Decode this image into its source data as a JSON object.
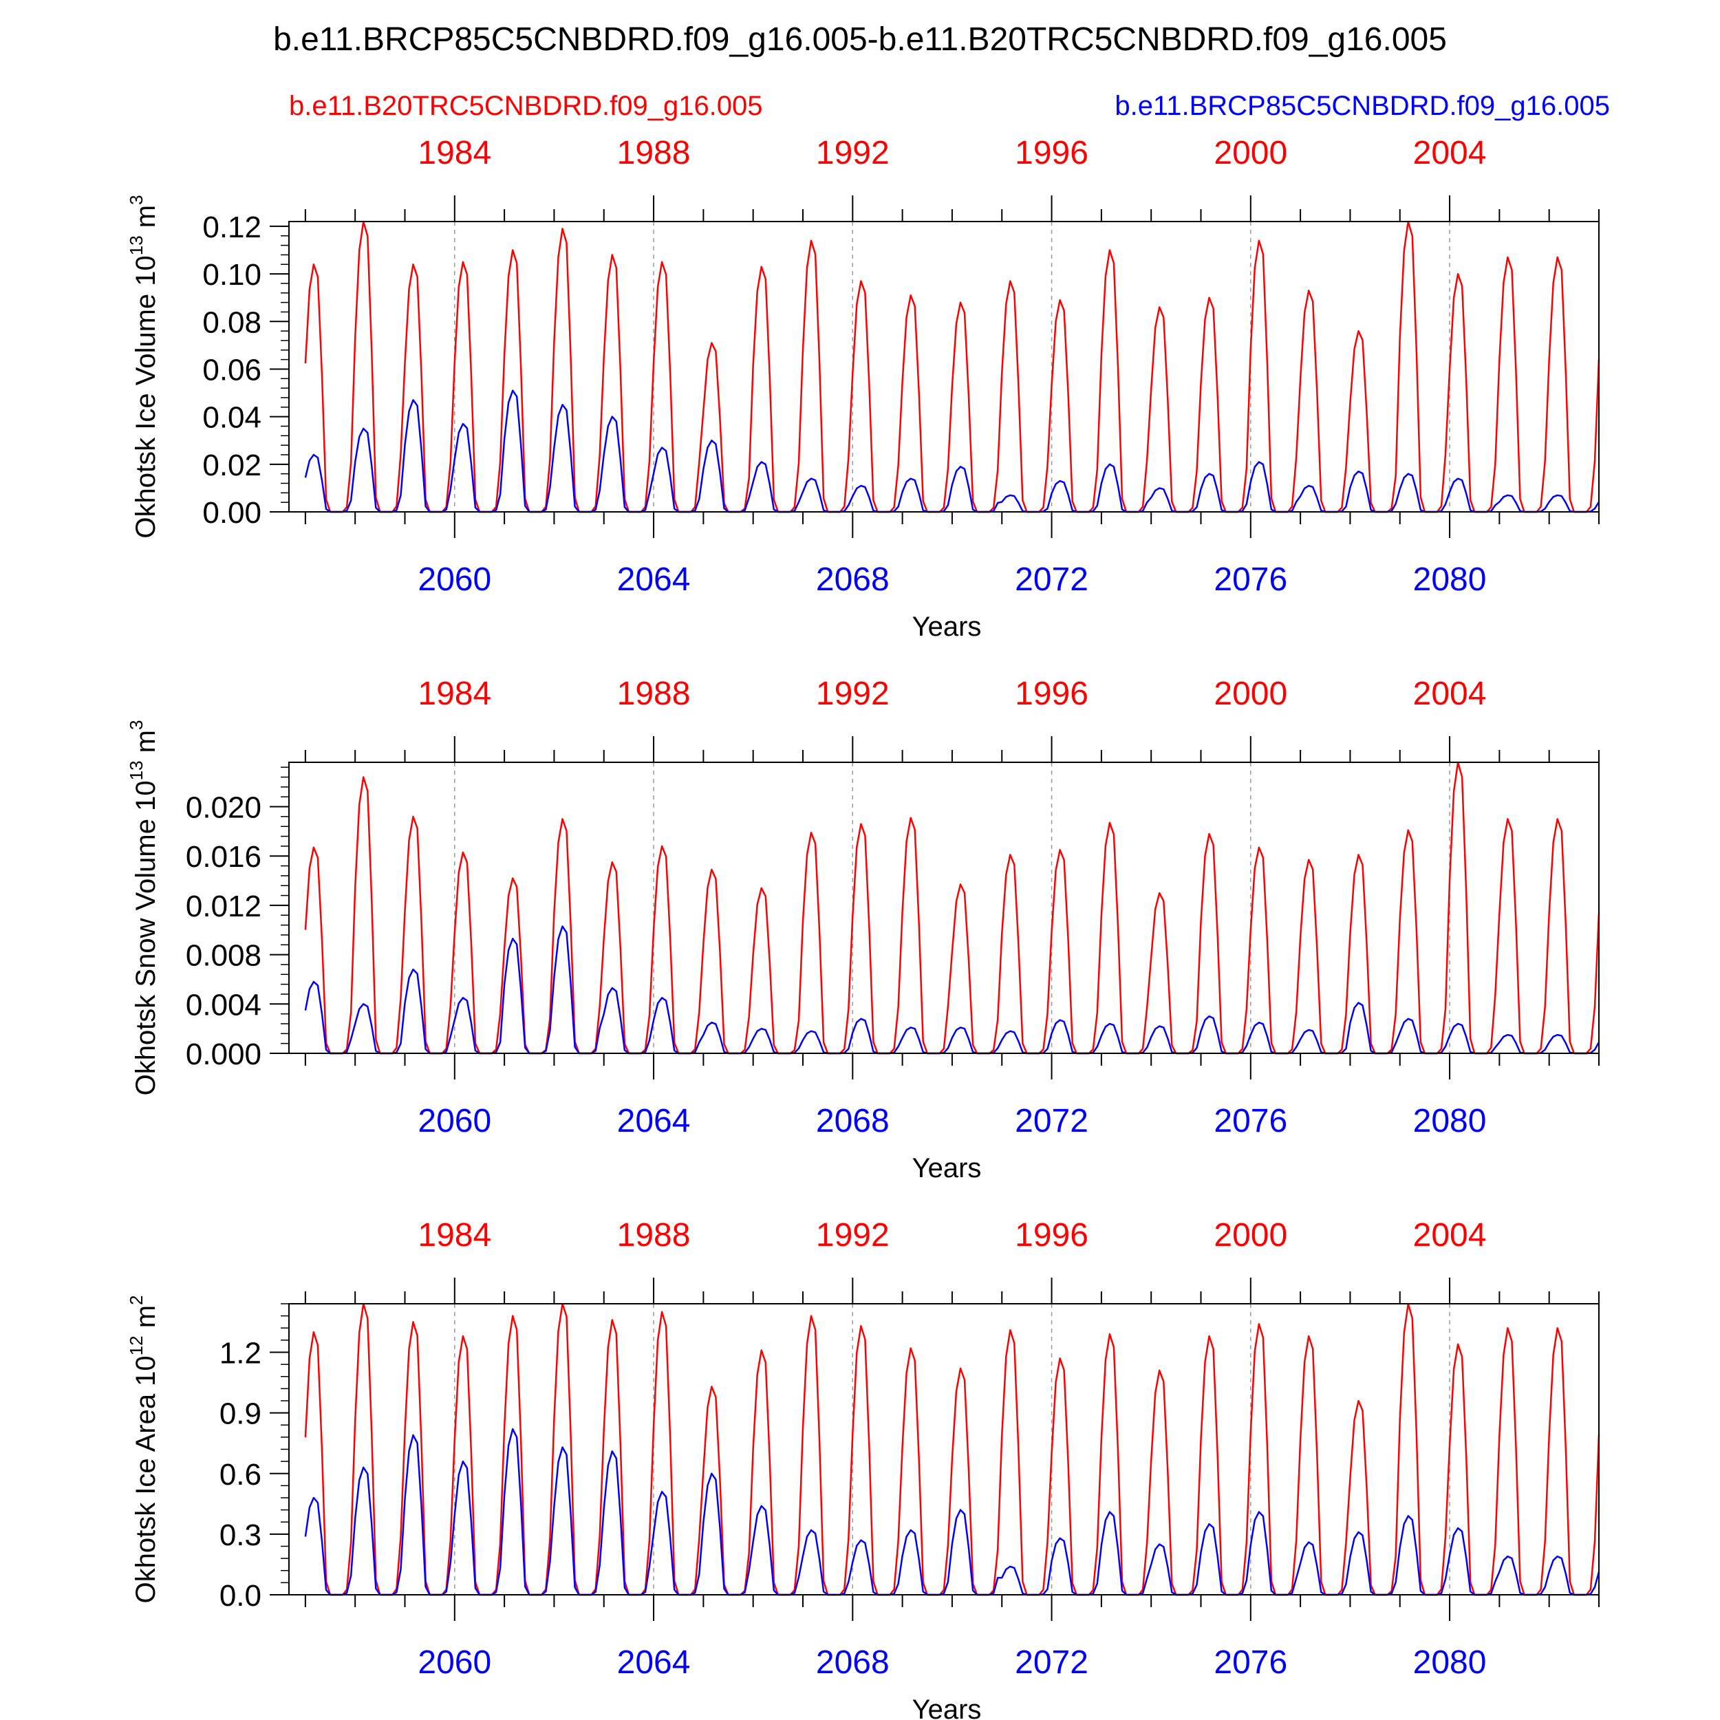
{
  "title": "b.e11.BRCP85C5CNBDRD.f09_g16.005-b.e11.B20TRC5CNBDRD.f09_g16.005",
  "legend": {
    "red_label": "b.e11.B20TRC5CNBDRD.f09_g16.005",
    "blue_label": "b.e11.BRCP85C5CNBDRD.f09_g16.005"
  },
  "colors": {
    "historical": "#ff0000",
    "future": "#0000ff",
    "axis": "#000000",
    "grid": "#999999"
  },
  "chart_data": [
    {
      "type": "line",
      "panel": "ice-volume",
      "ylabel": "Okhotsk Ice Volume 10",
      "ylabel_exp": "13",
      "ylabel_unit": " m",
      "ylabel_unit_exp": "3",
      "xlabel": "Years",
      "ylim": [
        0,
        0.122
      ],
      "yticks": [
        0.0,
        0.02,
        0.04,
        0.06,
        0.08,
        0.1,
        0.12
      ],
      "ytick_labels": [
        "0.00",
        "0.02",
        "0.04",
        "0.06",
        "0.08",
        "0.10",
        "0.12"
      ],
      "top_axis": {
        "xlim": [
          1980.67,
          2007.0
        ],
        "ticks": [
          1984,
          1988,
          1992,
          1996,
          2000,
          2004
        ]
      },
      "bottom_axis": {
        "xlim": [
          2056.67,
          2083.0
        ],
        "ticks": [
          2060,
          2064,
          2068,
          2072,
          2076,
          2080
        ]
      },
      "series": [
        {
          "color": "#ff0000",
          "axis": "top",
          "peaks": [
            0.104,
            0.122,
            0.104,
            0.105,
            0.11,
            0.119,
            0.108,
            0.105,
            0.071,
            0.103,
            0.114,
            0.097,
            0.091,
            0.088,
            0.097,
            0.089,
            0.11,
            0.086,
            0.09,
            0.114,
            0.093,
            0.076,
            0.122,
            0.1,
            0.107
          ]
        },
        {
          "color": "#0000ff",
          "axis": "bottom",
          "peaks": [
            0.024,
            0.035,
            0.047,
            0.037,
            0.051,
            0.045,
            0.04,
            0.027,
            0.03,
            0.021,
            0.014,
            0.011,
            0.014,
            0.019,
            0.007,
            0.013,
            0.02,
            0.01,
            0.016,
            0.021,
            0.011,
            0.017,
            0.016,
            0.014,
            0.007
          ]
        }
      ]
    },
    {
      "type": "line",
      "panel": "snow-volume",
      "ylabel": "Okhotsk Snow Volume 10",
      "ylabel_exp": "13",
      "ylabel_unit": " m",
      "ylabel_unit_exp": "3",
      "xlabel": "Years",
      "ylim": [
        0,
        0.0236
      ],
      "yticks": [
        0.0,
        0.004,
        0.008,
        0.012,
        0.016,
        0.02
      ],
      "ytick_labels": [
        "0.000",
        "0.004",
        "0.008",
        "0.012",
        "0.016",
        "0.020"
      ],
      "top_axis": {
        "xlim": [
          1980.67,
          2007.0
        ],
        "ticks": [
          1984,
          1988,
          1992,
          1996,
          2000,
          2004
        ]
      },
      "bottom_axis": {
        "xlim": [
          2056.67,
          2083.0
        ],
        "ticks": [
          2060,
          2064,
          2068,
          2072,
          2076,
          2080
        ]
      },
      "series": [
        {
          "color": "#ff0000",
          "axis": "top",
          "peaks": [
            0.0167,
            0.0224,
            0.0192,
            0.0163,
            0.0142,
            0.019,
            0.0155,
            0.0168,
            0.0149,
            0.0134,
            0.0179,
            0.0186,
            0.0191,
            0.0137,
            0.0161,
            0.0165,
            0.0187,
            0.013,
            0.0178,
            0.0167,
            0.0157,
            0.0161,
            0.0181,
            0.0236,
            0.019
          ]
        },
        {
          "color": "#0000ff",
          "axis": "bottom",
          "peaks": [
            0.0058,
            0.004,
            0.0068,
            0.0045,
            0.0093,
            0.0103,
            0.0053,
            0.0045,
            0.0025,
            0.002,
            0.0018,
            0.0028,
            0.0021,
            0.0021,
            0.0018,
            0.0027,
            0.0024,
            0.0022,
            0.003,
            0.0025,
            0.0019,
            0.0041,
            0.0028,
            0.0024,
            0.0015
          ]
        }
      ]
    },
    {
      "type": "line",
      "panel": "ice-area",
      "ylabel": "Okhotsk Ice Area 10",
      "ylabel_exp": "12",
      "ylabel_unit": " m",
      "ylabel_unit_exp": "2",
      "xlabel": "Years",
      "ylim": [
        0,
        1.44
      ],
      "yticks": [
        0.0,
        0.3,
        0.6,
        0.9,
        1.2
      ],
      "ytick_labels": [
        "0.0",
        "0.3",
        "0.6",
        "0.9",
        "1.2"
      ],
      "top_axis": {
        "xlim": [
          1980.67,
          2007.0
        ],
        "ticks": [
          1984,
          1988,
          1992,
          1996,
          2000,
          2004
        ]
      },
      "bottom_axis": {
        "xlim": [
          2056.67,
          2083.0
        ],
        "ticks": [
          2060,
          2064,
          2068,
          2072,
          2076,
          2080
        ]
      },
      "series": [
        {
          "color": "#ff0000",
          "axis": "top",
          "peaks": [
            1.3,
            1.44,
            1.35,
            1.28,
            1.38,
            1.45,
            1.36,
            1.4,
            1.03,
            1.21,
            1.38,
            1.33,
            1.22,
            1.12,
            1.31,
            1.17,
            1.29,
            1.11,
            1.28,
            1.34,
            1.28,
            0.96,
            1.44,
            1.24,
            1.32
          ]
        },
        {
          "color": "#0000ff",
          "axis": "bottom",
          "peaks": [
            0.48,
            0.63,
            0.79,
            0.66,
            0.82,
            0.73,
            0.71,
            0.51,
            0.6,
            0.44,
            0.32,
            0.27,
            0.32,
            0.42,
            0.14,
            0.28,
            0.41,
            0.25,
            0.35,
            0.41,
            0.26,
            0.31,
            0.39,
            0.33,
            0.19
          ]
        }
      ]
    }
  ]
}
